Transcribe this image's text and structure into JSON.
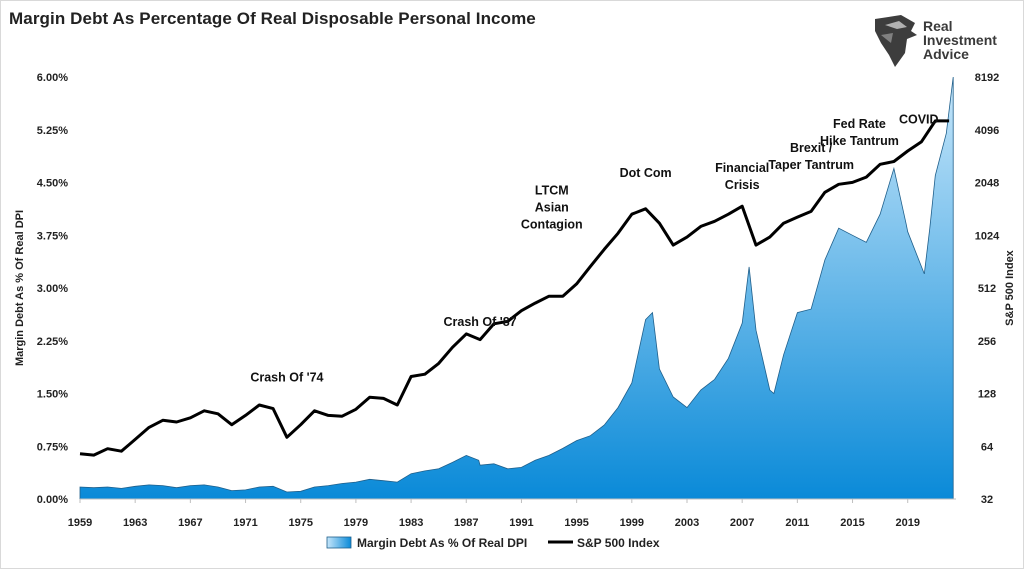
{
  "title": "Margin Debt As Percentage Of Real Disposable Personal Income",
  "logo": {
    "line1": "Real",
    "line2": "Investment",
    "line3": "Advice",
    "icon": "eagle-head-icon"
  },
  "chart_data": {
    "type": "area",
    "x_ticks": [
      "1959",
      "1963",
      "1967",
      "1971",
      "1975",
      "1979",
      "1983",
      "1987",
      "1991",
      "1995",
      "1999",
      "2003",
      "2007",
      "2011",
      "2015",
      "2019"
    ],
    "left_ticks": [
      "0.00%",
      "0.75%",
      "1.50%",
      "2.25%",
      "3.00%",
      "3.75%",
      "4.50%",
      "5.25%",
      "6.00%"
    ],
    "right_ticks": [
      "32",
      "64",
      "128",
      "256",
      "512",
      "1024",
      "2048",
      "4096",
      "8192"
    ],
    "ylabel_left": "Margin Debt As % Of Real DPI",
    "ylabel_right": "S&P 500 Index",
    "ylim_left": [
      0,
      6.0
    ],
    "ylim_right": [
      32,
      8192
    ],
    "xlim": [
      1959,
      2022.5
    ],
    "colors": {
      "area_top": "#c6e6fa",
      "area_bottom": "#0a8ad8",
      "area_edge": "#1f5f8b",
      "line": "#000000"
    },
    "legend": [
      {
        "label": "Margin Debt As % Of Real DPI",
        "kind": "area"
      },
      {
        "label": "S&P 500 Index",
        "kind": "line"
      }
    ],
    "series": [
      {
        "name": "Margin Debt As % Of Real DPI",
        "kind": "area",
        "axis": "left",
        "x": [
          1959,
          1960,
          1961,
          1962,
          1963,
          1964,
          1965,
          1966,
          1967,
          1968,
          1969,
          1970,
          1971,
          1972,
          1973,
          1974,
          1975,
          1976,
          1977,
          1978,
          1979,
          1980,
          1981,
          1982,
          1983,
          1984,
          1985,
          1986,
          1987,
          1987.9,
          1988,
          1989,
          1990,
          1991,
          1992,
          1993,
          1994,
          1995,
          1996,
          1997,
          1998,
          1999,
          2000,
          2000.5,
          2001,
          2002,
          2003,
          2004,
          2005,
          2006,
          2007,
          2007.5,
          2008,
          2009,
          2009.3,
          2010,
          2011,
          2012,
          2013,
          2014,
          2015,
          2016,
          2017,
          2018,
          2018.9,
          2019,
          2020.2,
          2020.6,
          2021,
          2021.8,
          2022.3
        ],
        "values": [
          0.17,
          0.16,
          0.17,
          0.15,
          0.18,
          0.2,
          0.19,
          0.16,
          0.19,
          0.2,
          0.17,
          0.12,
          0.13,
          0.17,
          0.18,
          0.1,
          0.11,
          0.17,
          0.19,
          0.22,
          0.24,
          0.28,
          0.26,
          0.24,
          0.36,
          0.4,
          0.43,
          0.52,
          0.62,
          0.55,
          0.48,
          0.5,
          0.43,
          0.45,
          0.55,
          0.62,
          0.72,
          0.83,
          0.9,
          1.05,
          1.3,
          1.65,
          2.55,
          2.65,
          1.85,
          1.45,
          1.3,
          1.55,
          1.7,
          2.0,
          2.5,
          3.3,
          2.4,
          1.55,
          1.5,
          2.05,
          2.65,
          2.7,
          3.4,
          3.85,
          3.75,
          3.65,
          4.05,
          4.7,
          3.9,
          3.8,
          3.2,
          3.85,
          4.6,
          5.2,
          6.0
        ]
      },
      {
        "name": "S&P 500 Index",
        "kind": "line",
        "axis": "right",
        "x": [
          1959,
          1960,
          1961,
          1962,
          1963,
          1964,
          1965,
          1966,
          1967,
          1968,
          1969,
          1970,
          1971,
          1972,
          1973,
          1974,
          1975,
          1976,
          1977,
          1978,
          1979,
          1980,
          1981,
          1982,
          1983,
          1984,
          1985,
          1986,
          1987,
          1988,
          1989,
          1990,
          1991,
          1992,
          1993,
          1994,
          1995,
          1996,
          1997,
          1998,
          1999,
          2000,
          2001,
          2002,
          2003,
          2004,
          2005,
          2006,
          2007,
          2008,
          2009,
          2010,
          2011,
          2012,
          2013,
          2014,
          2015,
          2016,
          2017,
          2018,
          2019,
          2020,
          2021,
          2022
        ],
        "values": [
          58,
          57,
          62,
          60,
          70,
          82,
          90,
          88,
          93,
          102,
          98,
          85,
          96,
          110,
          105,
          72,
          85,
          102,
          96,
          95,
          104,
          122,
          120,
          110,
          160,
          165,
          190,
          235,
          280,
          260,
          320,
          330,
          380,
          420,
          460,
          460,
          540,
          680,
          850,
          1050,
          1350,
          1450,
          1200,
          900,
          1000,
          1150,
          1230,
          1350,
          1500,
          900,
          1000,
          1200,
          1300,
          1400,
          1800,
          2000,
          2050,
          2200,
          2600,
          2700,
          3100,
          3500,
          4600,
          4600
        ]
      }
    ],
    "annotations": [
      {
        "text": "Crash Of '74",
        "x": 1974,
        "y_right": 150
      },
      {
        "text": "Crash Of '87",
        "x": 1988,
        "y_right": 310
      },
      {
        "lines": [
          "LTCM",
          "Asian",
          "Contagion"
        ],
        "x": 1993.2,
        "y_right": 1750
      },
      {
        "text": "Dot Com",
        "x": 2000,
        "y_right": 2200
      },
      {
        "lines": [
          "Financial",
          "Crisis"
        ],
        "x": 2007,
        "y_right": 2350
      },
      {
        "lines": [
          "Brexit /",
          "Taper Tantrum"
        ],
        "x": 2012,
        "y_right": 3050
      },
      {
        "lines": [
          "Fed Rate",
          "Hike Tantrum"
        ],
        "x": 2015.5,
        "y_right": 4200
      },
      {
        "text": "COVID",
        "x": 2019.8,
        "y_right": 4450
      }
    ]
  }
}
